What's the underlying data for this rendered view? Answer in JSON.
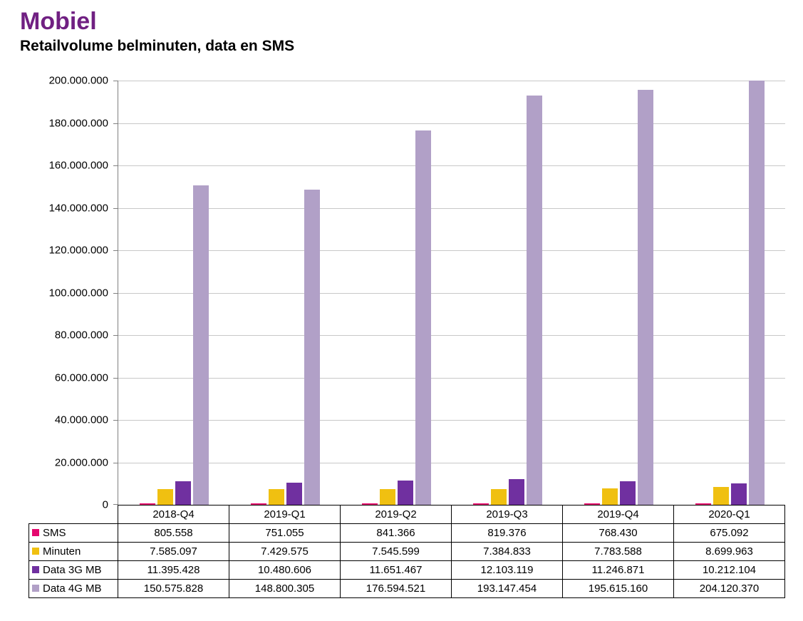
{
  "page": {
    "title": "Mobiel",
    "subtitle": "Retailvolume belminuten, data en SMS"
  },
  "chart_data": {
    "type": "bar",
    "title": "Retailvolume belminuten, data en SMS",
    "xlabel": "",
    "ylabel": "",
    "ylim": [
      0,
      200000000
    ],
    "ytick_step": 20000000,
    "grid": true,
    "legend_position": "table-left",
    "categories": [
      "2018-Q4",
      "2019-Q1",
      "2019-Q2",
      "2019-Q3",
      "2019-Q4",
      "2020-Q1"
    ],
    "ytick_labels": [
      "0",
      "20.000.000",
      "40.000.000",
      "60.000.000",
      "80.000.000",
      "100.000.000",
      "120.000.000",
      "140.000.000",
      "160.000.000",
      "180.000.000",
      "200.000.000"
    ],
    "series": [
      {
        "name": "SMS",
        "color": "#e5086e",
        "values": [
          805558,
          751055,
          841366,
          819376,
          768430,
          675092
        ],
        "labels": [
          "805.558",
          "751.055",
          "841.366",
          "819.376",
          "768.430",
          "675.092"
        ]
      },
      {
        "name": "Minuten",
        "color": "#f0c011",
        "values": [
          7585097,
          7429575,
          7545599,
          7384833,
          7783588,
          8699963
        ],
        "labels": [
          "7.585.097",
          "7.429.575",
          "7.545.599",
          "7.384.833",
          "7.783.588",
          "8.699.963"
        ]
      },
      {
        "name": "Data 3G MB",
        "color": "#7030a0",
        "values": [
          11395428,
          10480606,
          11651467,
          12103119,
          11246871,
          10212104
        ],
        "labels": [
          "11.395.428",
          "10.480.606",
          "11.651.467",
          "12.103.119",
          "11.246.871",
          "10.212.104"
        ]
      },
      {
        "name": "Data 4G MB",
        "color": "#b1a0c7",
        "values": [
          150575828,
          148800305,
          176594521,
          193147454,
          195615160,
          204120370
        ],
        "labels": [
          "150.575.828",
          "148.800.305",
          "176.594.521",
          "193.147.454",
          "195.615.160",
          "204.120.370"
        ]
      }
    ]
  }
}
